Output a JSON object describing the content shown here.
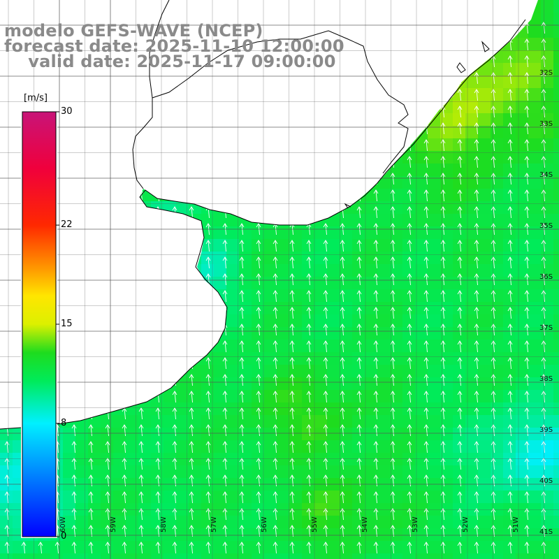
{
  "title": {
    "line1": "modelo GEFS-WAVE (NCEP)",
    "line2": "forecast date: 2025-11-10 12:00:00",
    "line3": "    valid date: 2025-11-17 09:00:00"
  },
  "colorbar": {
    "unit": "[m/s]",
    "min": 0,
    "max": 30,
    "ticks": [
      {
        "value": 30,
        "label": "30"
      },
      {
        "value": 22,
        "label": "22"
      },
      {
        "value": 15,
        "label": "15"
      },
      {
        "value": 8,
        "label": "8"
      },
      {
        "value": 0,
        "label": "0"
      }
    ]
  },
  "lat_labels": [
    "32S",
    "33S",
    "34S",
    "35S",
    "36S",
    "37S",
    "38S",
    "39S",
    "40S",
    "41S"
  ],
  "lon_labels": [
    "60W",
    "59W",
    "58W",
    "57W",
    "56W",
    "55W",
    "54W",
    "53W",
    "52W",
    "51W"
  ],
  "colors": {
    "grid": "#555555",
    "coast": "#000000",
    "arrows": "#ffffff",
    "land": "#ffffff",
    "title_text": "#8a8a8a"
  }
}
